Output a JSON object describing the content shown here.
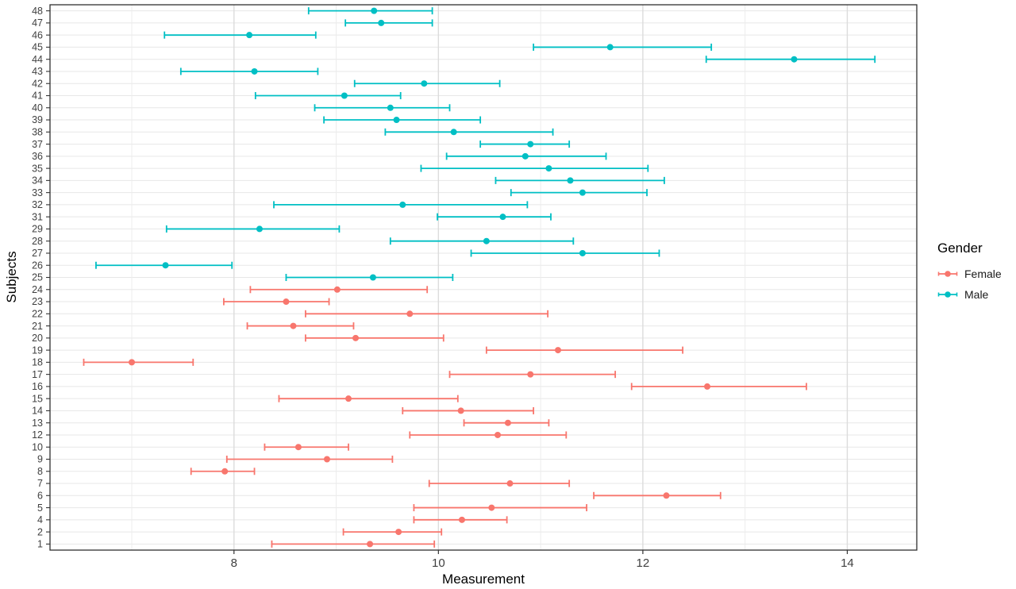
{
  "chart_data": {
    "type": "scatter",
    "chart_kind": "horizontal-pointrange-forest-plot",
    "title": "",
    "xlabel": "Measurement",
    "ylabel": "Subjects",
    "xlim": [
      6.2,
      14.68
    ],
    "x_major_ticks": [
      8,
      10,
      12,
      14
    ],
    "x_minor_gridlines": [
      7,
      9,
      11,
      13
    ],
    "grid": "on",
    "y_axis_note": "subjects listed top-to-bottom; labels 3, 11 and 30 are absent",
    "groups": {
      "Female": "#F8766D",
      "Male": "#00BFC4"
    },
    "legend": {
      "title": "Gender",
      "position": "right",
      "entries": [
        {
          "label": "Female",
          "color": "#F8766D"
        },
        {
          "label": "Male",
          "color": "#00BFC4"
        }
      ]
    },
    "rows": [
      {
        "subject": 48,
        "gender": "Male",
        "low": 8.73,
        "value": 9.37,
        "high": 9.94
      },
      {
        "subject": 47,
        "gender": "Male",
        "low": 9.09,
        "value": 9.44,
        "high": 9.94
      },
      {
        "subject": 46,
        "gender": "Male",
        "low": 7.32,
        "value": 8.15,
        "high": 8.8
      },
      {
        "subject": 45,
        "gender": "Male",
        "low": 10.93,
        "value": 11.68,
        "high": 12.67
      },
      {
        "subject": 44,
        "gender": "Male",
        "low": 12.62,
        "value": 13.48,
        "high": 14.27
      },
      {
        "subject": 43,
        "gender": "Male",
        "low": 7.48,
        "value": 8.2,
        "high": 8.82
      },
      {
        "subject": 42,
        "gender": "Male",
        "low": 9.18,
        "value": 9.86,
        "high": 10.6
      },
      {
        "subject": 41,
        "gender": "Male",
        "low": 8.21,
        "value": 9.08,
        "high": 9.63
      },
      {
        "subject": 40,
        "gender": "Male",
        "low": 8.79,
        "value": 9.53,
        "high": 10.11
      },
      {
        "subject": 39,
        "gender": "Male",
        "low": 8.88,
        "value": 9.59,
        "high": 10.41
      },
      {
        "subject": 38,
        "gender": "Male",
        "low": 9.48,
        "value": 10.15,
        "high": 11.12
      },
      {
        "subject": 37,
        "gender": "Male",
        "low": 10.41,
        "value": 10.9,
        "high": 11.28
      },
      {
        "subject": 36,
        "gender": "Male",
        "low": 10.08,
        "value": 10.85,
        "high": 11.64
      },
      {
        "subject": 35,
        "gender": "Male",
        "low": 9.83,
        "value": 11.08,
        "high": 12.05
      },
      {
        "subject": 34,
        "gender": "Male",
        "low": 10.56,
        "value": 11.29,
        "high": 12.21
      },
      {
        "subject": 33,
        "gender": "Male",
        "low": 10.71,
        "value": 11.41,
        "high": 12.04
      },
      {
        "subject": 32,
        "gender": "Male",
        "low": 8.39,
        "value": 9.65,
        "high": 10.87
      },
      {
        "subject": 31,
        "gender": "Male",
        "low": 9.99,
        "value": 10.63,
        "high": 11.1
      },
      {
        "subject": 29,
        "gender": "Male",
        "low": 7.34,
        "value": 8.25,
        "high": 9.03
      },
      {
        "subject": 28,
        "gender": "Male",
        "low": 9.53,
        "value": 10.47,
        "high": 11.32
      },
      {
        "subject": 27,
        "gender": "Male",
        "low": 10.32,
        "value": 11.41,
        "high": 12.16
      },
      {
        "subject": 26,
        "gender": "Male",
        "low": 6.65,
        "value": 7.33,
        "high": 7.98
      },
      {
        "subject": 25,
        "gender": "Male",
        "low": 8.51,
        "value": 9.36,
        "high": 10.14
      },
      {
        "subject": 24,
        "gender": "Female",
        "low": 8.16,
        "value": 9.01,
        "high": 9.89
      },
      {
        "subject": 23,
        "gender": "Female",
        "low": 7.9,
        "value": 8.51,
        "high": 8.93
      },
      {
        "subject": 22,
        "gender": "Female",
        "low": 8.7,
        "value": 9.72,
        "high": 11.07
      },
      {
        "subject": 21,
        "gender": "Female",
        "low": 8.13,
        "value": 8.58,
        "high": 9.17
      },
      {
        "subject": 20,
        "gender": "Female",
        "low": 8.7,
        "value": 9.19,
        "high": 10.05
      },
      {
        "subject": 19,
        "gender": "Female",
        "low": 10.47,
        "value": 11.17,
        "high": 12.39
      },
      {
        "subject": 18,
        "gender": "Female",
        "low": 6.53,
        "value": 7.0,
        "high": 7.6
      },
      {
        "subject": 17,
        "gender": "Female",
        "low": 10.11,
        "value": 10.9,
        "high": 11.73
      },
      {
        "subject": 16,
        "gender": "Female",
        "low": 11.89,
        "value": 12.63,
        "high": 13.6
      },
      {
        "subject": 15,
        "gender": "Female",
        "low": 8.44,
        "value": 9.12,
        "high": 10.19
      },
      {
        "subject": 14,
        "gender": "Female",
        "low": 9.65,
        "value": 10.22,
        "high": 10.93
      },
      {
        "subject": 13,
        "gender": "Female",
        "low": 10.25,
        "value": 10.68,
        "high": 11.08
      },
      {
        "subject": 12,
        "gender": "Female",
        "low": 9.72,
        "value": 10.58,
        "high": 11.25
      },
      {
        "subject": 10,
        "gender": "Female",
        "low": 8.3,
        "value": 8.63,
        "high": 9.12
      },
      {
        "subject": 9,
        "gender": "Female",
        "low": 7.93,
        "value": 8.91,
        "high": 9.55
      },
      {
        "subject": 8,
        "gender": "Female",
        "low": 7.58,
        "value": 7.91,
        "high": 8.2
      },
      {
        "subject": 7,
        "gender": "Female",
        "low": 9.91,
        "value": 10.7,
        "high": 11.28
      },
      {
        "subject": 6,
        "gender": "Female",
        "low": 11.52,
        "value": 12.23,
        "high": 12.76
      },
      {
        "subject": 5,
        "gender": "Female",
        "low": 9.76,
        "value": 10.52,
        "high": 11.45
      },
      {
        "subject": 4,
        "gender": "Female",
        "low": 9.76,
        "value": 10.23,
        "high": 10.67
      },
      {
        "subject": 2,
        "gender": "Female",
        "low": 9.07,
        "value": 9.61,
        "high": 10.03
      },
      {
        "subject": 1,
        "gender": "Female",
        "low": 8.37,
        "value": 9.33,
        "high": 9.96
      }
    ]
  }
}
